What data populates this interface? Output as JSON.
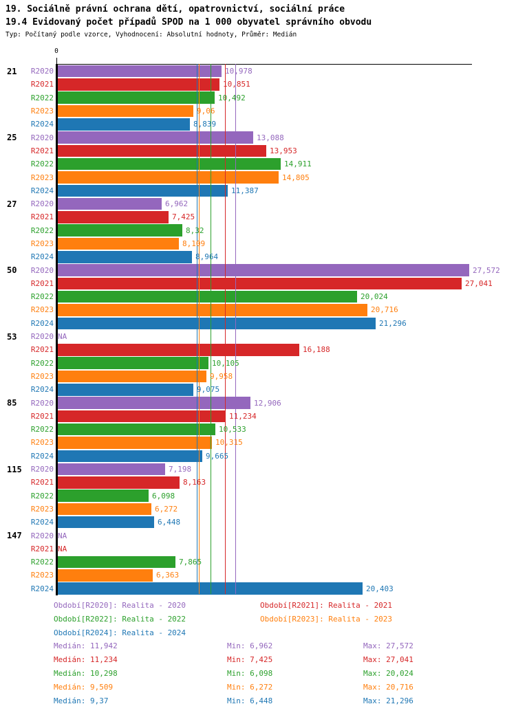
{
  "header": {
    "title": "19. Sociálně právní ochrana dětí, opatrovnictví, sociální práce",
    "subtitle": "19.4 Evidovaný počet případů SPOD na 1 000 obyvatel správního obvodu",
    "meta": "Typ: Počítaný podle vzorce, Vyhodnocení: Absolutní hodnoty, Průměr: Medián"
  },
  "chart_data": {
    "type": "bar",
    "orientation": "horizontal",
    "axis": {
      "origin_label": "0",
      "xlim": [
        0,
        27.74
      ],
      "grid": false
    },
    "series": [
      {
        "id": "R2020",
        "color": "#9467bd",
        "legend": "Období[R2020]: Realita - 2020",
        "median": 11.942,
        "median_label": "Medián: 11,942",
        "min_label": "Min: 6,962",
        "max_label": "Max: 27,572"
      },
      {
        "id": "R2021",
        "color": "#d62728",
        "legend": "Období[R2021]: Realita - 2021",
        "median": 11.234,
        "median_label": "Medián: 11,234",
        "min_label": "Min: 7,425",
        "max_label": "Max: 27,041"
      },
      {
        "id": "R2022",
        "color": "#2ca02c",
        "legend": "Období[R2022]: Realita - 2022",
        "median": 10.298,
        "median_label": "Medián: 10,298",
        "min_label": "Min: 6,098",
        "max_label": "Max: 20,024"
      },
      {
        "id": "R2023",
        "color": "#ff7f0e",
        "legend": "Období[R2023]: Realita - 2023",
        "median": 9.509,
        "median_label": "Medián: 9,509",
        "min_label": "Min: 6,272",
        "max_label": "Max: 20,716"
      },
      {
        "id": "R2024",
        "color": "#1f77b4",
        "legend": "Období[R2024]: Realita - 2024",
        "median": 9.37,
        "median_label": "Medián: 9,37",
        "min_label": "Min: 6,448",
        "max_label": "Max: 21,296"
      }
    ],
    "na_text": "NA",
    "groups": [
      {
        "label": "21",
        "values": [
          10.978,
          10.851,
          10.492,
          9.06,
          8.839
        ],
        "value_labels": [
          "10,978",
          "10,851",
          "10,492",
          "9,06",
          "8,839"
        ]
      },
      {
        "label": "25",
        "values": [
          13.088,
          13.953,
          14.911,
          14.805,
          11.387
        ],
        "value_labels": [
          "13,088",
          "13,953",
          "14,911",
          "14,805",
          "11,387"
        ]
      },
      {
        "label": "27",
        "values": [
          6.962,
          7.425,
          8.32,
          8.109,
          8.964
        ],
        "value_labels": [
          "6,962",
          "7,425",
          "8,32",
          "8,109",
          "8,964"
        ]
      },
      {
        "label": "50",
        "values": [
          27.572,
          27.041,
          20.024,
          20.716,
          21.296
        ],
        "value_labels": [
          "27,572",
          "27,041",
          "20,024",
          "20,716",
          "21,296"
        ]
      },
      {
        "label": "53",
        "values": [
          null,
          16.188,
          10.105,
          9.958,
          9.075
        ],
        "value_labels": [
          "NA",
          "16,188",
          "10,105",
          "9,958",
          "9,075"
        ]
      },
      {
        "label": "85",
        "values": [
          12.906,
          11.234,
          10.533,
          10.315,
          9.665
        ],
        "value_labels": [
          "12,906",
          "11,234",
          "10,533",
          "10,315",
          "9,665"
        ]
      },
      {
        "label": "115",
        "values": [
          7.198,
          8.163,
          6.098,
          6.272,
          6.448
        ],
        "value_labels": [
          "7,198",
          "8,163",
          "6,098",
          "6,272",
          "6,448"
        ]
      },
      {
        "label": "147",
        "values": [
          null,
          null,
          7.865,
          6.363,
          20.403
        ],
        "value_labels": [
          "NA",
          "NA",
          "7,865",
          "6,363",
          "20,403"
        ]
      }
    ]
  }
}
